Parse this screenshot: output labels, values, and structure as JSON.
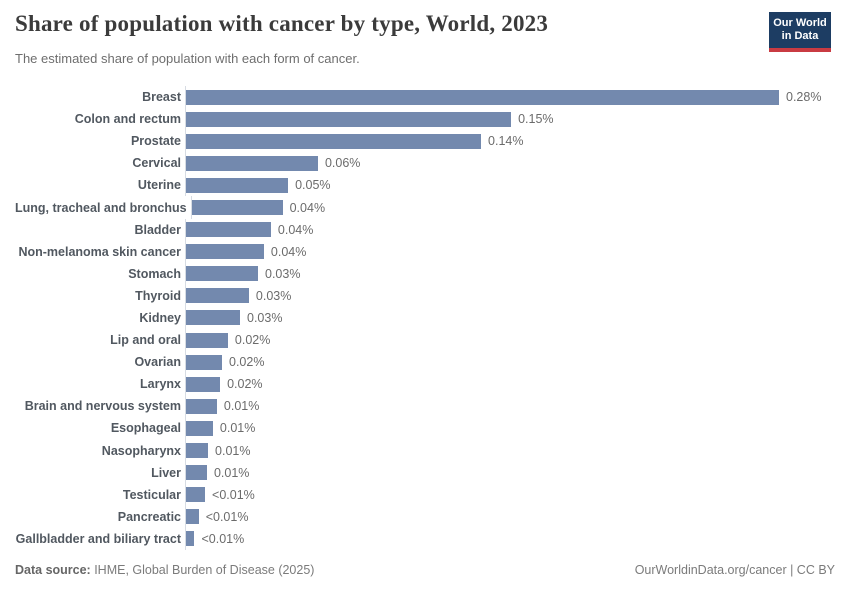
{
  "header": {
    "title": "Share of population with cancer by type, World, 2023",
    "subtitle": "The estimated share of population with each form of cancer.",
    "logo": {
      "line1": "Our World",
      "line2": "in Data",
      "bg_color": "#1d3d63",
      "accent_color": "#c93b42"
    }
  },
  "chart_data": {
    "type": "bar",
    "orientation": "horizontal",
    "title": "Share of population with cancer by type, World, 2023",
    "subtitle": "The estimated share of population with each form of cancer.",
    "xlabel": "",
    "ylabel": "",
    "unit": "%",
    "xlim": [
      0,
      0.28
    ],
    "grid": false,
    "legend": false,
    "bar_color": "#7389ae",
    "axis_line_color": "#d7dce3",
    "rows": [
      {
        "category": "Breast",
        "value": 0.28,
        "label": "0.28%"
      },
      {
        "category": "Colon and rectum",
        "value": 0.1535,
        "label": "0.15%"
      },
      {
        "category": "Prostate",
        "value": 0.1393,
        "label": "0.14%"
      },
      {
        "category": "Cervical",
        "value": 0.0623,
        "label": "0.06%"
      },
      {
        "category": "Uterine",
        "value": 0.0482,
        "label": "0.05%"
      },
      {
        "category": "Lung, tracheal and bronchus",
        "value": 0.043,
        "label": "0.04%"
      },
      {
        "category": "Bladder",
        "value": 0.0401,
        "label": "0.04%"
      },
      {
        "category": "Non-melanoma skin cancer",
        "value": 0.0368,
        "label": "0.04%"
      },
      {
        "category": "Stomach",
        "value": 0.034,
        "label": "0.03%"
      },
      {
        "category": "Thyroid",
        "value": 0.0297,
        "label": "0.03%"
      },
      {
        "category": "Kidney",
        "value": 0.0255,
        "label": "0.03%"
      },
      {
        "category": "Lip and oral",
        "value": 0.0198,
        "label": "0.02%"
      },
      {
        "category": "Ovarian",
        "value": 0.017,
        "label": "0.02%"
      },
      {
        "category": "Larynx",
        "value": 0.0161,
        "label": "0.02%"
      },
      {
        "category": "Brain and nervous system",
        "value": 0.0146,
        "label": "0.01%"
      },
      {
        "category": "Esophageal",
        "value": 0.0127,
        "label": "0.01%"
      },
      {
        "category": "Nasopharynx",
        "value": 0.0104,
        "label": "0.01%"
      },
      {
        "category": "Liver",
        "value": 0.0099,
        "label": "0.01%"
      },
      {
        "category": "Testicular",
        "value": 0.009,
        "label": "<0.01%"
      },
      {
        "category": "Pancreatic",
        "value": 0.006,
        "label": "<0.01%"
      },
      {
        "category": "Gallbladder and biliary tract",
        "value": 0.004,
        "label": "<0.01%"
      }
    ]
  },
  "footer": {
    "source_prefix": "Data source:",
    "source_text": " IHME, Global Burden of Disease (2025)",
    "credit": "OurWorldinData.org/cancer | CC BY"
  }
}
